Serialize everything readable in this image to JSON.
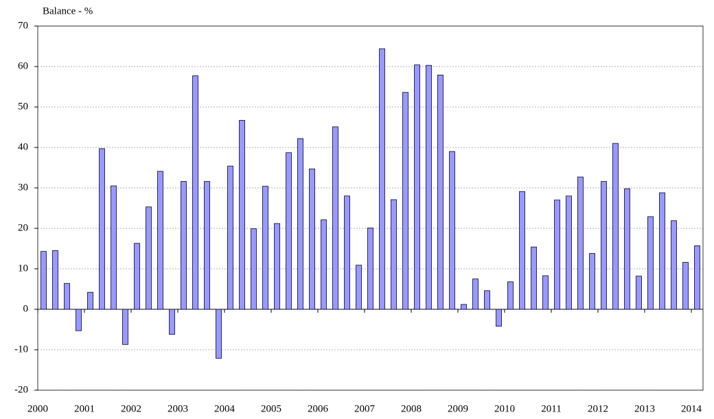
{
  "chart_data": {
    "type": "bar",
    "y_label": "Balance - %",
    "categories": [
      "2000",
      null,
      null,
      null,
      "2001",
      null,
      null,
      null,
      "2002",
      null,
      null,
      null,
      "2003",
      null,
      null,
      null,
      "2004",
      null,
      null,
      null,
      "2005",
      null,
      null,
      null,
      "2006",
      null,
      null,
      null,
      "2007",
      null,
      null,
      null,
      "2008",
      null,
      null,
      null,
      "2009",
      null,
      null,
      null,
      "2010",
      null,
      null,
      null,
      "2011",
      null,
      null,
      null,
      "2012",
      null,
      null,
      null,
      "2013",
      null,
      null,
      null,
      "2014"
    ],
    "values": [
      14.3,
      14.5,
      6.4,
      -5.3,
      4.2,
      39.7,
      30.5,
      -8.7,
      16.3,
      25.3,
      34.1,
      -6.2,
      31.6,
      57.7,
      31.6,
      -12.1,
      35.4,
      46.7,
      19.9,
      30.4,
      21.2,
      38.7,
      42.2,
      34.7,
      22.1,
      45.1,
      28.0,
      10.9,
      20.1,
      64.4,
      27.1,
      53.6,
      60.4,
      60.3,
      57.9,
      39.0,
      1.2,
      7.5,
      4.6,
      -4.2,
      6.8,
      29.1,
      15.4,
      8.3,
      27.0,
      28.0,
      32.7,
      13.8,
      31.6,
      41.0,
      29.8,
      8.2,
      22.9,
      28.8,
      21.9,
      11.6,
      15.7
    ],
    "color": "#9999ff",
    "ylim": [
      -20,
      70
    ],
    "yticks": [
      -20,
      -10,
      0,
      10,
      20,
      30,
      40,
      50,
      60,
      70
    ],
    "grid": true
  }
}
